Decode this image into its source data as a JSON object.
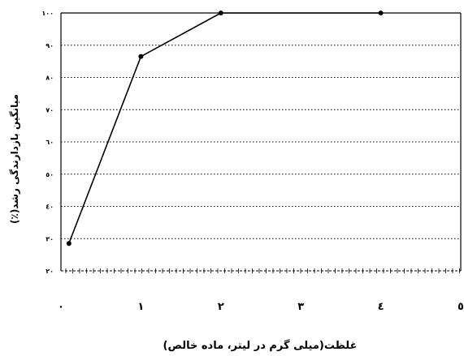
{
  "chart_data": {
    "type": "line",
    "xlabel": "غلظت(میلی گرم در لیتر، ماده خالص)",
    "ylabel": "میانگین بازدارندگی رشد(٪)",
    "xlim": [
      0,
      5
    ],
    "ylim": [
      20,
      100
    ],
    "x_ticks": [
      0,
      1,
      2,
      3,
      4,
      5
    ],
    "x_tick_labels": [
      "٠",
      "١",
      "٢",
      "٣",
      "٤",
      "٥"
    ],
    "y_ticks": [
      20,
      30,
      40,
      50,
      60,
      70,
      80,
      90,
      100
    ],
    "y_tick_labels": [
      "٢٠",
      "٣٠",
      "٤٠",
      "٥٠",
      "٦٠",
      "٧٠",
      "٨٠",
      "٩٠",
      "١٠٠"
    ],
    "grid": true,
    "series": [
      {
        "x": [
          0.1,
          1,
          2,
          4
        ],
        "y": [
          28.5,
          86.5,
          100,
          100
        ]
      }
    ],
    "colors": {
      "line": "#000000",
      "grid": "#000000",
      "background": "#ffffff"
    }
  }
}
